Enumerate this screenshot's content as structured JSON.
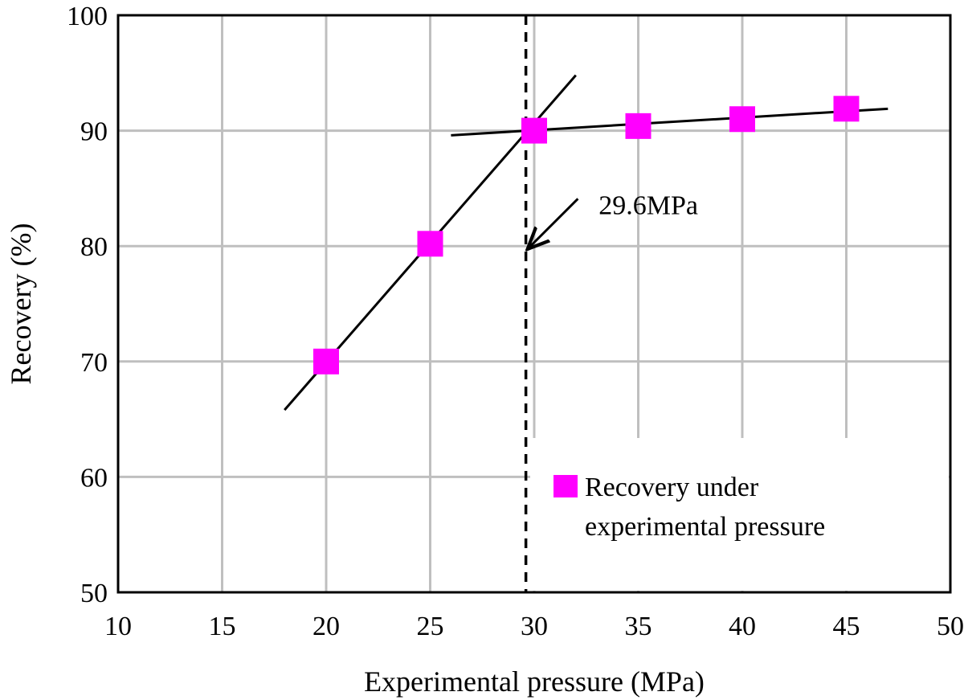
{
  "chart_data": {
    "type": "scatter",
    "title": "",
    "xlabel": "Experimental pressure (MPa)",
    "ylabel": "Recovery (%)",
    "xlim": [
      10,
      50
    ],
    "ylim": [
      50,
      100
    ],
    "x_ticks": [
      10,
      15,
      20,
      25,
      30,
      35,
      40,
      45,
      50
    ],
    "y_ticks": [
      50,
      60,
      70,
      80,
      90,
      100
    ],
    "grid": true,
    "series": [
      {
        "name": "Recovery under experimental pressure",
        "legend_lines": [
          "Recovery under",
          "experimental pressure"
        ],
        "color": "#ff00ff",
        "marker": "square",
        "x": [
          20,
          25,
          30,
          35,
          40,
          45
        ],
        "y": [
          70.0,
          80.2,
          90.0,
          90.4,
          91.0,
          91.9
        ]
      }
    ],
    "trend_lines": [
      {
        "name": "steep-fit",
        "x": [
          18,
          32
        ],
        "y": [
          65.8,
          94.8
        ]
      },
      {
        "name": "flat-fit",
        "x": [
          26,
          47
        ],
        "y": [
          89.6,
          91.9
        ]
      }
    ],
    "vertical_reference": {
      "x": 29.6,
      "style": "dashed"
    },
    "annotation": {
      "text": "29.6MPa",
      "arrow_from": [
        32.1,
        84.1
      ],
      "arrow_to": [
        29.6,
        79.6
      ],
      "text_at": [
        33.1,
        83.6
      ]
    },
    "legend_position": "bottom-right"
  }
}
